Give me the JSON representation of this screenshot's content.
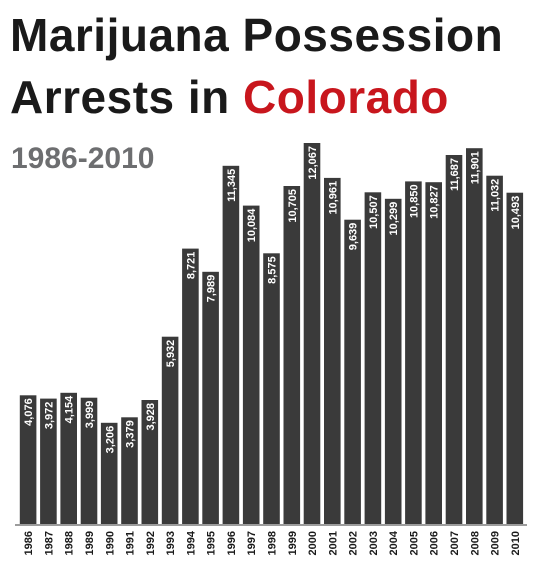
{
  "title": {
    "line1": "Marijuana Possession",
    "line2_prefix": "Arrests in ",
    "line2_accent": "Colorado"
  },
  "subtitle": "1986-2010",
  "colors": {
    "bar": "#3a3a3a",
    "accent": "#c8161d",
    "subtitle": "#6d6e70",
    "title": "#1a1a1a"
  },
  "chart_data": {
    "type": "bar",
    "title": "Marijuana Possession Arrests in Colorado",
    "subtitle": "1986-2010",
    "categories": [
      "1986",
      "1987",
      "1988",
      "1989",
      "1990",
      "1991",
      "1992",
      "1993",
      "1994",
      "1995",
      "1996",
      "1997",
      "1998",
      "1999",
      "2000",
      "2001",
      "2002",
      "2003",
      "2004",
      "2005",
      "2006",
      "2007",
      "2008",
      "2009",
      "2010"
    ],
    "values": [
      4076,
      3972,
      4154,
      3999,
      3206,
      3379,
      3928,
      5932,
      8721,
      7989,
      11345,
      10084,
      8575,
      10705,
      12067,
      10961,
      9639,
      10507,
      10299,
      10850,
      10827,
      11687,
      11901,
      11032,
      10493
    ],
    "value_labels": [
      "4,076",
      "3,972",
      "4,154",
      "3,999",
      "3,206",
      "3,379",
      "3,928",
      "5,932",
      "8,721",
      "7,989",
      "11,345",
      "10,084",
      "8,575",
      "10,705",
      "12,067",
      "10,961",
      "9,639",
      "10,507",
      "10,299",
      "10,850",
      "10,827",
      "11,687",
      "11,901",
      "11,032",
      "10,493"
    ],
    "xlabel": "",
    "ylabel": "",
    "ylim": [
      0,
      12067
    ],
    "grid": false,
    "legend": "none",
    "value_label_orientation": "vertical, inside top of bar",
    "category_label_orientation": "vertical"
  }
}
